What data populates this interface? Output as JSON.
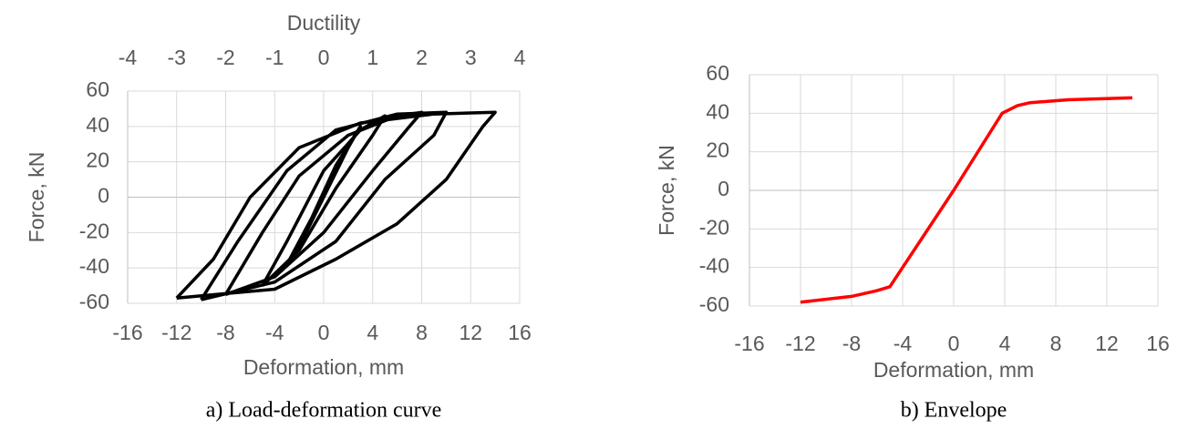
{
  "chart_data": [
    {
      "type": "line",
      "caption": "a) Load-deformation curve",
      "xlabel": "Deformation, mm",
      "ylabel": "Force, kN",
      "x2label": "Ductility",
      "xlim": [
        -16,
        16
      ],
      "xticks": [
        -16,
        -12,
        -8,
        -4,
        0,
        4,
        8,
        12,
        16
      ],
      "x2lim": [
        -4,
        4
      ],
      "x2ticks": [
        -4,
        -3,
        -2,
        -1,
        0,
        1,
        2,
        3,
        4
      ],
      "ylim": [
        -60,
        60
      ],
      "yticks": [
        -60,
        -40,
        -20,
        0,
        20,
        40,
        60
      ],
      "grid": true,
      "series": [
        {
          "color": "#000000",
          "x": [
            -3,
            -1,
            1,
            3,
            2,
            0,
            -2,
            -3
          ],
          "values": [
            -38,
            -12,
            18,
            40,
            28,
            0,
            -28,
            -38
          ]
        },
        {
          "color": "#000000",
          "x": [
            -5,
            -3,
            0,
            3,
            5,
            4,
            1,
            -2,
            -5
          ],
          "values": [
            -50,
            -25,
            15,
            38,
            46,
            35,
            5,
            -30,
            -50
          ]
        },
        {
          "color": "#000000",
          "x": [
            -8,
            -5,
            -2,
            2,
            6,
            8,
            7,
            4,
            0,
            -4,
            -8
          ],
          "values": [
            -55,
            -20,
            12,
            35,
            46,
            48,
            40,
            15,
            -20,
            -45,
            -55
          ]
        },
        {
          "color": "#000000",
          "x": [
            -10,
            -7,
            -3,
            1,
            6,
            10,
            9,
            5,
            1,
            -4,
            -10
          ],
          "values": [
            -58,
            -25,
            15,
            38,
            47,
            48,
            35,
            10,
            -25,
            -48,
            -58
          ]
        },
        {
          "color": "#000000",
          "x": [
            -12,
            -9,
            -6,
            -2,
            3,
            9,
            14,
            13,
            10,
            6,
            1,
            -4,
            -12
          ],
          "values": [
            -57,
            -35,
            0,
            28,
            42,
            47,
            48,
            40,
            10,
            -15,
            -35,
            -52,
            -57
          ]
        }
      ]
    },
    {
      "type": "line",
      "caption": "b) Envelope",
      "xlabel": "Deformation, mm",
      "ylabel": "Force, kN",
      "xlim": [
        -16,
        16
      ],
      "xticks": [
        -16,
        -12,
        -8,
        -4,
        0,
        4,
        8,
        12,
        16
      ],
      "ylim": [
        -60,
        60
      ],
      "yticks": [
        -60,
        -40,
        -20,
        0,
        20,
        40,
        60
      ],
      "grid": true,
      "series": [
        {
          "color": "#ff0000",
          "x": [
            -12,
            -8,
            -6,
            -5,
            0,
            3.8,
            5,
            6,
            9,
            14
          ],
          "values": [
            -58,
            -55,
            -52,
            -50,
            0,
            40,
            44,
            45.5,
            47,
            48
          ]
        }
      ]
    }
  ]
}
